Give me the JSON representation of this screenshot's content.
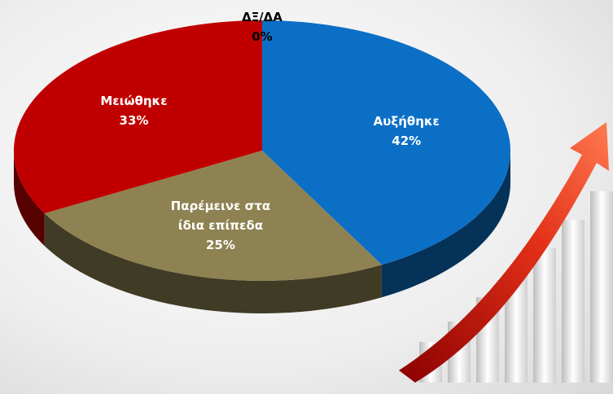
{
  "chart_data": {
    "type": "pie3d",
    "categories": [
      "Αυξήθηκε",
      "Παρέμεινε στα ίδια επίπεδα",
      "Μειώθηκε",
      "ΔΞ/ΔΑ"
    ],
    "values": [
      42,
      25,
      33,
      0
    ],
    "value_labels": [
      "42%",
      "25%",
      "33%",
      "0%"
    ],
    "colors": [
      "#0b6fc6",
      "#8e8252",
      "#c00000",
      "#7f7f7f"
    ]
  }
}
